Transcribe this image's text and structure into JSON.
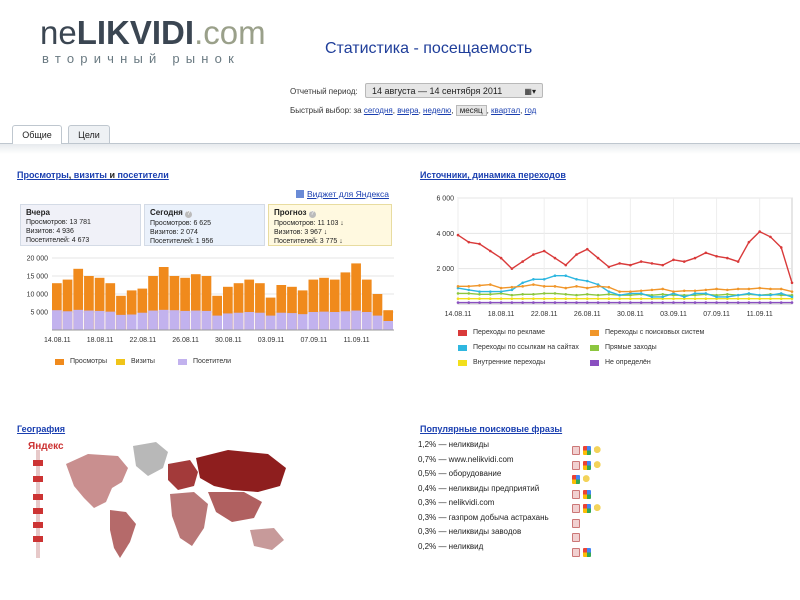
{
  "logo": {
    "part1": "ne",
    "part2": "LIKVIDI",
    "part3": ".com",
    "subtitle": "вторичный рынок"
  },
  "slide_title": "Статистика - посещаемость",
  "period": {
    "label": "Отчетный период:",
    "value": "14 августа — 14 сентября 2011",
    "icon": "calendar-icon"
  },
  "quick": {
    "label": "Быстрый выбор: за",
    "options": [
      "сегодня",
      "вчера",
      "неделю",
      "месяц",
      "квартал",
      "год"
    ],
    "selected": "месяц"
  },
  "tabs": [
    "Общие",
    "Цели"
  ],
  "visits_section": {
    "title_parts": [
      "Просмотры",
      ", ",
      "визиты",
      " и ",
      "посетители"
    ],
    "widget_link": "Виджет для Яндекса",
    "boxes": [
      {
        "title": "Вчера",
        "lines": [
          "Просмотров: 13 781",
          "Визитов: 4 936",
          "Посетителей: 4 673"
        ]
      },
      {
        "title": "Сегодня",
        "lines": [
          "Просмотров: 6 625",
          "Визитов: 2 074",
          "Посетителей: 1 956"
        ]
      },
      {
        "title": "Прогноз",
        "lines": [
          "Просмотров: 11 103 ↓",
          "Визитов: 3 967 ↓",
          "Посетителей: 3 775 ↓"
        ]
      }
    ]
  },
  "sources_section": {
    "title": "Источники, динамика переходов"
  },
  "geo_section": {
    "title": "География",
    "yandex_mark": "Яндекс"
  },
  "phrases_section": {
    "title": "Популярные поисковые фразы",
    "rows": [
      {
        "text": "1,2% — неликвиды",
        "icons": [
          "y",
          "g",
          "k"
        ]
      },
      {
        "text": "0,7% — www.nelikvidi.com",
        "icons": [
          "y",
          "g",
          "k"
        ]
      },
      {
        "text": "0,5% — оборудование",
        "icons": [
          "g",
          "k"
        ]
      },
      {
        "text": "0,4% — неликвиды предприятий",
        "icons": [
          "y",
          "g"
        ]
      },
      {
        "text": "0,3% — nelikvidi.com",
        "icons": [
          "y",
          "g",
          "k"
        ]
      },
      {
        "text": "0,3% — газпром добыча астрахань",
        "icons": [
          "y"
        ]
      },
      {
        "text": "0,3% — неликвиды заводов",
        "icons": [
          "y"
        ]
      },
      {
        "text": "0,2% — неликвид",
        "icons": [
          "y",
          "g"
        ]
      }
    ]
  },
  "chart_data": [
    {
      "type": "bar",
      "categories": [
        "14.08.11",
        "15.08.11",
        "16.08.11",
        "17.08.11",
        "18.08.11",
        "19.08.11",
        "20.08.11",
        "21.08.11",
        "22.08.11",
        "23.08.11",
        "24.08.11",
        "25.08.11",
        "26.08.11",
        "27.08.11",
        "28.08.11",
        "29.08.11",
        "30.08.11",
        "31.08.11",
        "01.09.11",
        "02.09.11",
        "03.09.11",
        "04.09.11",
        "05.09.11",
        "06.09.11",
        "07.09.11",
        "08.09.11",
        "09.09.11",
        "10.09.11",
        "11.09.11",
        "12.09.11",
        "13.09.11",
        "14.09.11"
      ],
      "x_tick_labels": [
        "14.08.11",
        "18.08.11",
        "22.08.11",
        "26.08.11",
        "30.08.11",
        "03.09.11",
        "07.09.11",
        "11.09.11"
      ],
      "y_tick_labels": [
        "20 000",
        "15 000",
        "10 000",
        "5 000"
      ],
      "ylim": [
        0,
        20000
      ],
      "series": [
        {
          "name": "Просмотры",
          "color": "#f08a1c",
          "values": [
            13000,
            14000,
            17000,
            15000,
            14500,
            13000,
            9500,
            11000,
            11500,
            15000,
            17500,
            15000,
            14500,
            15500,
            15000,
            9500,
            12000,
            13000,
            14000,
            13000,
            9000,
            12500,
            12000,
            11000,
            14000,
            14500,
            14000,
            16000,
            18500,
            14000,
            10000,
            5500
          ]
        },
        {
          "name": "Визиты",
          "color": "#f0c419",
          "values": [
            0,
            0,
            0,
            0,
            0,
            0,
            0,
            0,
            0,
            0,
            0,
            0,
            0,
            0,
            0,
            0,
            0,
            0,
            0,
            0,
            0,
            0,
            0,
            0,
            0,
            0,
            0,
            0,
            0,
            0,
            0,
            0
          ]
        },
        {
          "name": "Посетители",
          "color": "#c2b2ee",
          "values": [
            5500,
            5200,
            5600,
            5400,
            5300,
            5100,
            4200,
            4300,
            4800,
            5400,
            5600,
            5500,
            5300,
            5400,
            5300,
            4000,
            4600,
            4800,
            5000,
            4800,
            4000,
            4800,
            4700,
            4400,
            5000,
            5100,
            5000,
            5200,
            5400,
            5000,
            4000,
            2500
          ]
        }
      ]
    },
    {
      "type": "line",
      "x_tick_labels": [
        "14.08.11",
        "18.08.11",
        "22.08.11",
        "26.08.11",
        "30.08.11",
        "03.09.11",
        "07.09.11",
        "11.09.11"
      ],
      "y_tick_labels": [
        "6 000",
        "4 000",
        "2 000"
      ],
      "ylim": [
        0,
        6000
      ],
      "series": [
        {
          "name": "Переходы по рекламе",
          "color": "#d93a3a",
          "values": [
            3900,
            3500,
            3400,
            3000,
            2600,
            2000,
            2400,
            2800,
            3000,
            2600,
            2200,
            2800,
            3100,
            2600,
            2100,
            2300,
            2200,
            2400,
            2300,
            2200,
            2500,
            2400,
            2600,
            2900,
            2700,
            2600,
            2400,
            3500,
            4100,
            3800,
            3200,
            1200
          ]
        },
        {
          "name": "Переходы с поисковых систем",
          "color": "#f0962a",
          "values": [
            1000,
            1000,
            1050,
            1100,
            900,
            950,
            1000,
            1100,
            1000,
            1000,
            900,
            1000,
            900,
            1000,
            950,
            700,
            700,
            750,
            800,
            850,
            700,
            750,
            750,
            800,
            850,
            800,
            850,
            850,
            900,
            850,
            850,
            700
          ]
        },
        {
          "name": "Переходы по ссылкам на сайтах",
          "color": "#2fb7e0",
          "values": [
            900,
            800,
            700,
            700,
            700,
            800,
            1200,
            1400,
            1400,
            1600,
            1600,
            1400,
            1300,
            1100,
            700,
            500,
            600,
            600,
            400,
            400,
            600,
            400,
            600,
            600,
            400,
            400,
            500,
            600,
            500,
            500,
            600,
            400
          ]
        },
        {
          "name": "Прямые заходы",
          "color": "#8cc63f",
          "values": [
            600,
            600,
            550,
            550,
            600,
            500,
            550,
            550,
            600,
            600,
            550,
            500,
            550,
            500,
            550,
            500,
            500,
            550,
            500,
            550,
            500,
            500,
            500,
            550,
            500,
            550,
            500,
            550,
            500,
            550,
            500,
            500
          ]
        },
        {
          "name": "Внутренние переходы",
          "color": "#f2df1c",
          "values": [
            300,
            300,
            300,
            300,
            300,
            300,
            300,
            300,
            300,
            300,
            300,
            300,
            300,
            300,
            300,
            300,
            300,
            300,
            300,
            300,
            300,
            300,
            300,
            300,
            300,
            300,
            300,
            300,
            300,
            300,
            300,
            300
          ]
        },
        {
          "name": "Не определён",
          "color": "#8a4fc0",
          "values": [
            80,
            80,
            80,
            80,
            80,
            80,
            80,
            80,
            80,
            80,
            80,
            80,
            80,
            80,
            80,
            80,
            80,
            80,
            80,
            80,
            80,
            80,
            80,
            80,
            80,
            80,
            80,
            80,
            80,
            80,
            80,
            80
          ]
        }
      ]
    }
  ]
}
